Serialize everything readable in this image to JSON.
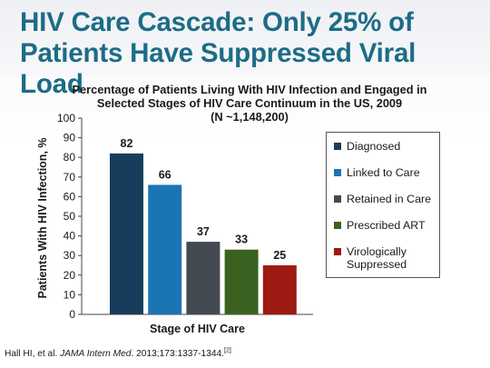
{
  "slide": {
    "title_line1": "HIV Care Cascade: Only 25% of",
    "title_line2": "Patients Have Suppressed Viral Load"
  },
  "chart_data": {
    "type": "bar",
    "title_lines": [
      "Percentage of Patients Living With HIV Infection and Engaged in",
      "Selected Stages of HIV Care Continuum in the US, 2009",
      "(N ~1,148,200)"
    ],
    "xlabel": "Stage of HIV Care",
    "ylabel": "Patients With HIV Infection, %",
    "ylim": [
      0,
      100
    ],
    "yticks": [
      "0",
      "10",
      "20",
      "30",
      "40",
      "50",
      "60",
      "70",
      "80",
      "90",
      "100"
    ],
    "grid": false,
    "legend_position": "right",
    "categories": [
      "Diagnosed",
      "Linked to Care",
      "Retained in Care",
      "Prescribed ART",
      "Virologically Suppressed"
    ],
    "values": [
      82,
      66,
      37,
      33,
      25
    ],
    "value_labels": [
      "82",
      "66",
      "37",
      "33",
      "25"
    ],
    "colors": [
      "#183d5c",
      "#1b75b5",
      "#434a52",
      "#3b6120",
      "#9c1a12"
    ],
    "legend": [
      {
        "label": "Diagnosed",
        "color": "#183d5c"
      },
      {
        "label": "Linked to Care",
        "color": "#1b75b5"
      },
      {
        "label": "Retained in Care",
        "color": "#434a52"
      },
      {
        "label": "Prescribed ART",
        "color": "#3b6120"
      },
      {
        "label": "Virologically Suppressed",
        "color": "#9c1a12"
      }
    ]
  },
  "citation": {
    "prefix": "Hall HI, et al. ",
    "journal": "JAMA Intern Med",
    "suffix": ". 2013;173:1337-1344.",
    "ref": "[2]"
  }
}
